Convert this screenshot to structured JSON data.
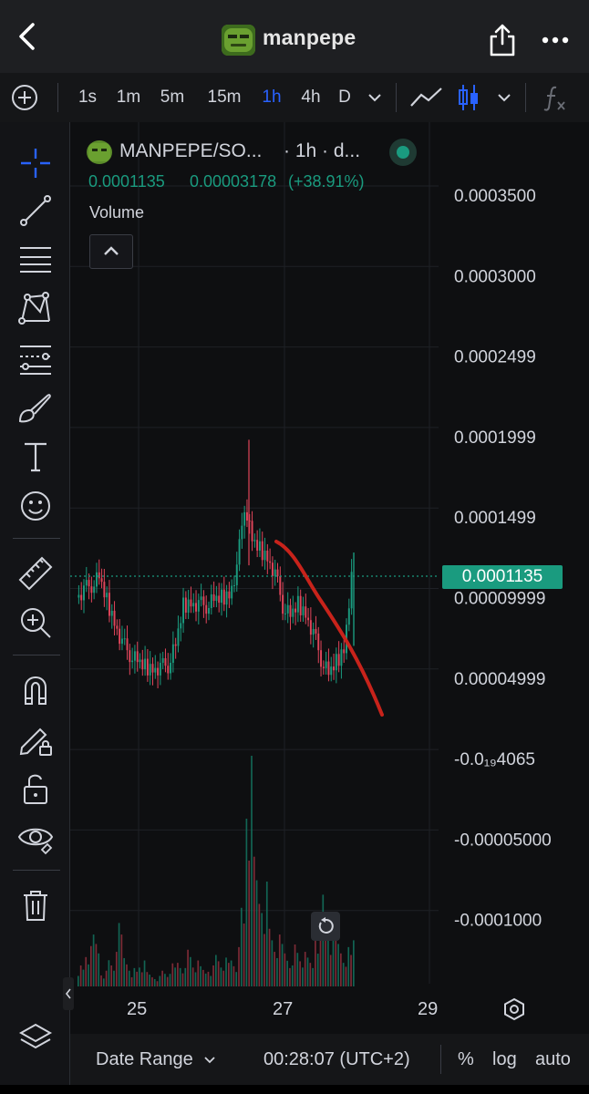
{
  "header": {
    "title": "manpepe",
    "back_icon": "chevron-left-icon",
    "share_icon": "share-icon",
    "more_icon": "more-horizontal-icon"
  },
  "toolbar": {
    "intervals": [
      "1s",
      "1m",
      "5m",
      "15m",
      "1h",
      "4h",
      "D"
    ],
    "active_interval": "1h",
    "add_icon": "plus-circle-icon",
    "chevron_icon": "chevron-down-icon",
    "line_chart_icon": "line-chart-icon",
    "candles_icon": "candlestick-icon",
    "indicators_icon": "function-icon"
  },
  "sidebar": {
    "tools": [
      "crosshair-icon",
      "trend-line-icon",
      "fib-lines-icon",
      "pattern-icon",
      "gann-icon",
      "brush-icon",
      "text-icon",
      "emoji-icon",
      "ruler-icon",
      "zoom-in-icon",
      "magnet-icon",
      "pencil-lock-icon",
      "unlock-icon",
      "eye-icon",
      "trash-icon",
      "layers-icon"
    ]
  },
  "legend": {
    "symbol": "MANPEPE/SO...",
    "interval_label": "· 1h · d...",
    "last_price": "0.0001135",
    "change": "0.00003178",
    "change_pct": "(+38.91%)",
    "volume_label": "Volume",
    "collapse_icon": "chevron-up-icon",
    "status_color": "#1a9b7f"
  },
  "price_axis": {
    "labels": [
      "0.0003500",
      "0.0003000",
      "0.0002499",
      "0.0001999",
      "0.0001499",
      "0.00009999",
      "0.00004999",
      "-0.0₁₉4065",
      "-0.00005000",
      "-0.0001000"
    ],
    "current_price": "0.0001135"
  },
  "time_axis": {
    "labels": [
      "25",
      "27",
      "29"
    ],
    "settings_icon": "hexagon-settings-icon"
  },
  "chart_data": {
    "type": "candlestick",
    "title": "MANPEPE/SO...",
    "interval": "1h",
    "ylim": [
      -0.0001,
      0.00035
    ],
    "last_price": 0.0001135,
    "x_labels": [
      "25",
      "27",
      "29"
    ],
    "price_path": [
      0.0001,
      0.000105,
      0.000108,
      0.000112,
      9.8e-05,
      8.5e-05,
      7.2e-05,
      6.5e-05,
      6e-05,
      5.7e-05,
      5.6e-05,
      5.7e-05,
      5.8e-05,
      7e-05,
      9.5e-05,
      9.7e-05,
      9.6e-05,
      9.5e-05,
      9.8e-05,
      0.0001,
      0.000102,
      0.000118,
      0.000158,
      0.000135,
      0.00013,
      0.000125,
      0.000115,
      9.5e-05,
      8.8e-05,
      9.6e-05,
      9e-05,
      7.8e-05,
      6.2e-05,
      5.2e-05,
      6e-05,
      6.8e-05,
      0.0001135
    ],
    "volume": [
      8,
      14,
      18,
      6,
      10,
      22,
      12,
      7,
      9,
      5,
      4,
      6,
      8,
      10,
      14,
      9,
      7,
      8,
      12,
      10,
      11,
      30,
      80,
      45,
      40,
      22,
      18,
      14,
      16,
      12,
      10,
      25,
      35,
      20,
      18,
      15,
      22
    ]
  },
  "reset_icon": "rotate-ccw-icon",
  "footer": {
    "date_range": "Date Range",
    "time": "00:28:07 (UTC+2)",
    "percent": "%",
    "log": "log",
    "auto": "auto"
  },
  "colors": {
    "up": "#1a9b7f",
    "down": "#e0455a",
    "accent": "#2962ff",
    "annotation": "#c8231b"
  }
}
